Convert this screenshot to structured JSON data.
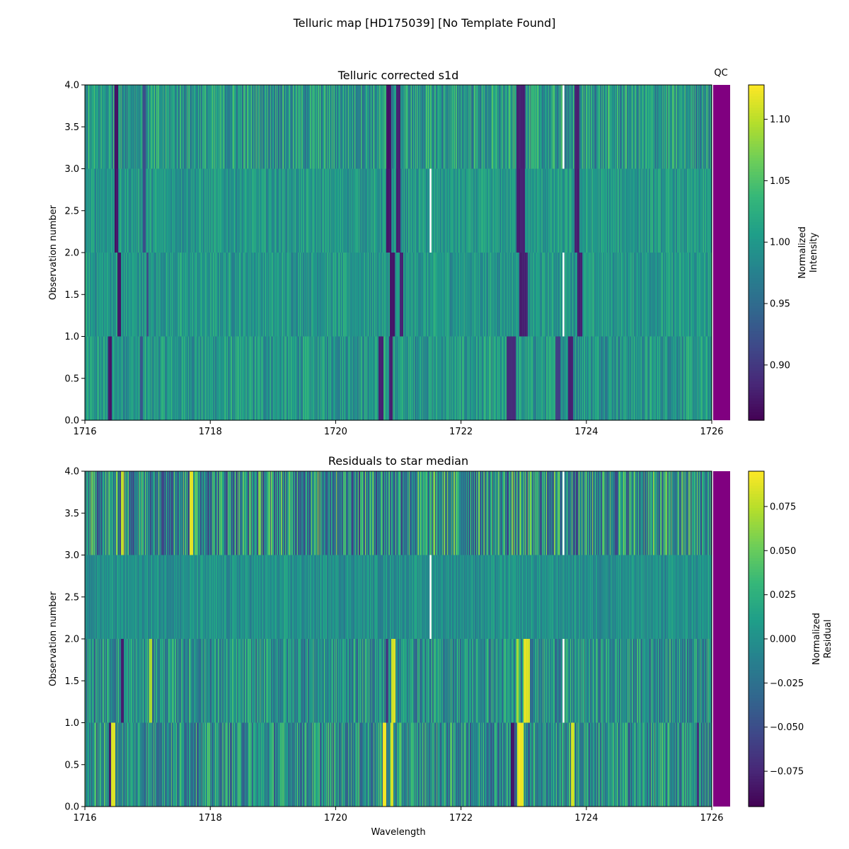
{
  "figure": {
    "title": "Telluric map [HD175039] [No Template Found]"
  },
  "chart_data": [
    {
      "type": "heatmap",
      "title": "Telluric corrected s1d",
      "xlabel": "",
      "ylabel": "Observation number",
      "xlim": [
        1716,
        1726
      ],
      "ylim": [
        0.0,
        4.0
      ],
      "x_ticks": [
        "1716",
        "1718",
        "1720",
        "1722",
        "1724",
        "1726"
      ],
      "y_ticks": [
        "0.0",
        "0.5",
        "1.0",
        "1.5",
        "2.0",
        "2.5",
        "3.0",
        "3.5",
        "4.0"
      ],
      "colormap": "viridis",
      "colorbar": {
        "label": [
          "Normalized",
          "Intensity"
        ],
        "range": [
          0.855,
          1.128
        ],
        "ticks": [
          0.9,
          0.95,
          1.0,
          1.05,
          1.1
        ],
        "tick_labels": [
          "0.90",
          "0.95",
          "1.00",
          "1.05",
          "1.10"
        ]
      },
      "qc_label": "QC",
      "qc_color": "#800080",
      "background_value": 1.0,
      "noise_by_row": [
        0.025,
        0.02,
        0.02,
        0.035
      ],
      "rows": [
        0,
        1,
        2,
        3
      ],
      "features": [
        {
          "row": 0,
          "x": 16.4,
          "width": 0.03,
          "value": 0.87
        },
        {
          "row": 0,
          "x": 16.9,
          "width": 0.02,
          "value": 0.93
        },
        {
          "row": 0,
          "x": 20.72,
          "width": 0.04,
          "value": 0.88
        },
        {
          "row": 0,
          "x": 20.88,
          "width": 0.03,
          "value": 0.88
        },
        {
          "row": 0,
          "x": 22.8,
          "width": 0.07,
          "value": 0.89
        },
        {
          "row": 0,
          "x": 23.55,
          "width": 0.04,
          "value": 0.91
        },
        {
          "row": 0,
          "x": 23.75,
          "width": 0.04,
          "value": 0.88
        },
        {
          "row": 1,
          "x": 16.55,
          "width": 0.03,
          "value": 0.87
        },
        {
          "row": 1,
          "x": 17.0,
          "width": 0.02,
          "value": 0.92
        },
        {
          "row": 1,
          "x": 20.9,
          "width": 0.04,
          "value": 0.87
        },
        {
          "row": 1,
          "x": 21.05,
          "width": 0.03,
          "value": 0.88
        },
        {
          "row": 1,
          "x": 23.0,
          "width": 0.07,
          "value": 0.88
        },
        {
          "row": 1,
          "x": 23.9,
          "width": 0.04,
          "value": 0.88
        },
        {
          "row": 2,
          "x": 16.5,
          "width": 0.03,
          "value": 0.87
        },
        {
          "row": 2,
          "x": 16.95,
          "width": 0.02,
          "value": 0.92
        },
        {
          "row": 2,
          "x": 20.85,
          "width": 0.04,
          "value": 0.87
        },
        {
          "row": 2,
          "x": 21.0,
          "width": 0.03,
          "value": 0.88
        },
        {
          "row": 2,
          "x": 22.95,
          "width": 0.07,
          "value": 0.88
        },
        {
          "row": 2,
          "x": 23.85,
          "width": 0.04,
          "value": 0.88
        },
        {
          "row": 3,
          "x": 16.5,
          "width": 0.03,
          "value": 0.87
        },
        {
          "row": 3,
          "x": 16.95,
          "width": 0.02,
          "value": 0.92
        },
        {
          "row": 3,
          "x": 20.85,
          "width": 0.04,
          "value": 0.87
        },
        {
          "row": 3,
          "x": 21.0,
          "width": 0.03,
          "value": 0.88
        },
        {
          "row": 3,
          "x": 22.95,
          "width": 0.07,
          "value": 0.88
        },
        {
          "row": 3,
          "x": 23.85,
          "width": 0.04,
          "value": 0.88
        }
      ],
      "gaps": [
        {
          "rows": [
            2
          ],
          "x": 21.5
        },
        {
          "rows": [
            1,
            3
          ],
          "x": 23.62
        }
      ]
    },
    {
      "type": "heatmap",
      "title": "Residuals to star median",
      "xlabel": "Wavelength",
      "ylabel": "Observation number",
      "xlim": [
        1716,
        1726
      ],
      "ylim": [
        0.0,
        4.0
      ],
      "x_ticks": [
        "1716",
        "1718",
        "1720",
        "1722",
        "1724",
        "1726"
      ],
      "y_ticks": [
        "0.0",
        "0.5",
        "1.0",
        "1.5",
        "2.0",
        "2.5",
        "3.0",
        "3.5",
        "4.0"
      ],
      "colormap": "viridis",
      "colorbar": {
        "label": [
          "Normalized",
          "Residual"
        ],
        "range": [
          -0.095,
          0.095
        ],
        "ticks": [
          -0.075,
          -0.05,
          -0.025,
          0.0,
          0.025,
          0.05,
          0.075
        ],
        "tick_labels": [
          "−0.075",
          "−0.050",
          "−0.025",
          "0.000",
          "0.025",
          "0.050",
          "0.075"
        ]
      },
      "qc_label": "",
      "qc_color": "#800080",
      "background_value": 0.0,
      "noise_by_row": [
        0.03,
        0.025,
        0.012,
        0.04
      ],
      "rows": [
        0,
        1,
        2,
        3
      ],
      "features": [
        {
          "row": 0,
          "x": 16.45,
          "width": 0.03,
          "value": 0.085
        },
        {
          "row": 0,
          "x": 16.4,
          "width": 0.02,
          "value": -0.08
        },
        {
          "row": 0,
          "x": 20.78,
          "width": 0.03,
          "value": 0.09
        },
        {
          "row": 0,
          "x": 20.9,
          "width": 0.02,
          "value": 0.08
        },
        {
          "row": 0,
          "x": 22.95,
          "width": 0.05,
          "value": 0.088
        },
        {
          "row": 0,
          "x": 22.82,
          "width": 0.03,
          "value": -0.085
        },
        {
          "row": 0,
          "x": 23.78,
          "width": 0.03,
          "value": 0.08
        },
        {
          "row": 0,
          "x": 25.78,
          "width": 0.02,
          "value": -0.07
        },
        {
          "row": 1,
          "x": 16.6,
          "width": 0.02,
          "value": -0.08
        },
        {
          "row": 1,
          "x": 17.05,
          "width": 0.02,
          "value": 0.07
        },
        {
          "row": 1,
          "x": 20.92,
          "width": 0.03,
          "value": 0.085
        },
        {
          "row": 1,
          "x": 20.82,
          "width": 0.02,
          "value": -0.06
        },
        {
          "row": 1,
          "x": 23.05,
          "width": 0.05,
          "value": 0.085
        },
        {
          "row": 1,
          "x": 22.9,
          "width": 0.02,
          "value": 0.07
        },
        {
          "row": 3,
          "x": 17.7,
          "width": 0.03,
          "value": 0.09
        },
        {
          "row": 3,
          "x": 16.6,
          "width": 0.02,
          "value": 0.08
        }
      ],
      "gaps": [
        {
          "rows": [
            2
          ],
          "x": 21.5
        },
        {
          "rows": [
            1,
            3
          ],
          "x": 23.62
        }
      ]
    }
  ]
}
